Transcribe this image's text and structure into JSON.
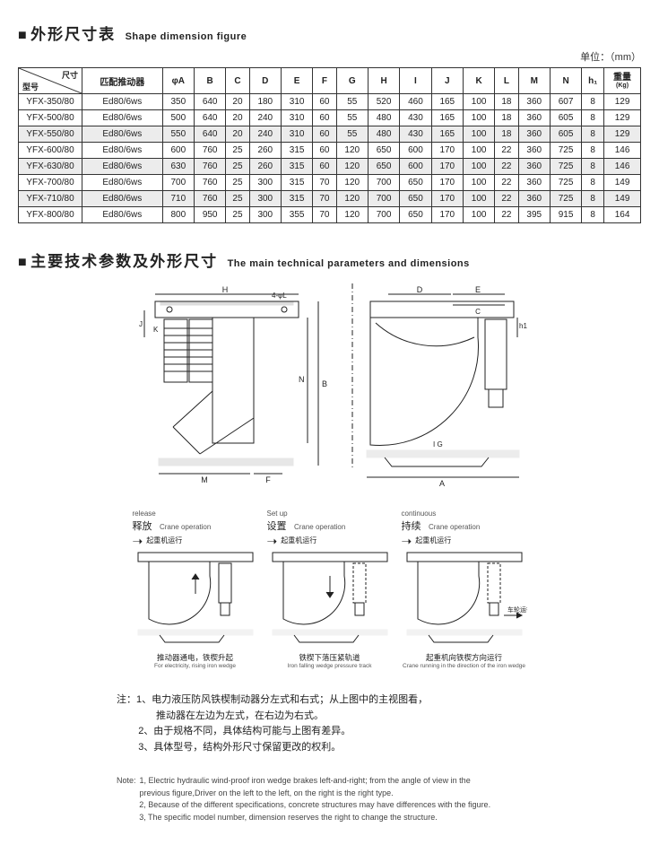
{
  "section1": {
    "title_cn": "外形尺寸表",
    "title_en": "Shape dimension figure",
    "unit": "单位：（mm）",
    "corner_top": "尺寸",
    "corner_bottom": "型号",
    "columns": [
      "匹配推动器",
      "φA",
      "B",
      "C",
      "D",
      "E",
      "F",
      "G",
      "H",
      "I",
      "J",
      "K",
      "L",
      "M",
      "N",
      "h₁",
      "重量",
      "(Kg)"
    ],
    "rows": [
      {
        "model": "YFX-350/80",
        "shade": false,
        "cells": [
          "Ed80/6ws",
          "350",
          "640",
          "20",
          "180",
          "310",
          "60",
          "55",
          "520",
          "460",
          "165",
          "100",
          "18",
          "360",
          "607",
          "8",
          "129"
        ]
      },
      {
        "model": "YFX-500/80",
        "shade": false,
        "cells": [
          "Ed80/6ws",
          "500",
          "640",
          "20",
          "240",
          "310",
          "60",
          "55",
          "480",
          "430",
          "165",
          "100",
          "18",
          "360",
          "605",
          "8",
          "129"
        ]
      },
      {
        "model": "YFX-550/80",
        "shade": true,
        "cells": [
          "Ed80/6ws",
          "550",
          "640",
          "20",
          "240",
          "310",
          "60",
          "55",
          "480",
          "430",
          "165",
          "100",
          "18",
          "360",
          "605",
          "8",
          "129"
        ]
      },
      {
        "model": "YFX-600/80",
        "shade": false,
        "cells": [
          "Ed80/6ws",
          "600",
          "760",
          "25",
          "260",
          "315",
          "60",
          "120",
          "650",
          "600",
          "170",
          "100",
          "22",
          "360",
          "725",
          "8",
          "146"
        ]
      },
      {
        "model": "YFX-630/80",
        "shade": true,
        "cells": [
          "Ed80/6ws",
          "630",
          "760",
          "25",
          "260",
          "315",
          "60",
          "120",
          "650",
          "600",
          "170",
          "100",
          "22",
          "360",
          "725",
          "8",
          "146"
        ]
      },
      {
        "model": "YFX-700/80",
        "shade": false,
        "cells": [
          "Ed80/6ws",
          "700",
          "760",
          "25",
          "300",
          "315",
          "70",
          "120",
          "700",
          "650",
          "170",
          "100",
          "22",
          "360",
          "725",
          "8",
          "149"
        ]
      },
      {
        "model": "YFX-710/80",
        "shade": true,
        "cells": [
          "Ed80/6ws",
          "710",
          "760",
          "25",
          "300",
          "315",
          "70",
          "120",
          "700",
          "650",
          "170",
          "100",
          "22",
          "360",
          "725",
          "8",
          "149"
        ]
      },
      {
        "model": "YFX-800/80",
        "shade": false,
        "cells": [
          "Ed80/6ws",
          "800",
          "950",
          "25",
          "300",
          "355",
          "70",
          "120",
          "700",
          "650",
          "170",
          "100",
          "22",
          "395",
          "915",
          "8",
          "164"
        ]
      }
    ]
  },
  "section2": {
    "title_cn": "主要技术参数及外形尺寸",
    "title_en": "The main technical parameters and dimensions"
  },
  "diagram_labels": {
    "H": "H",
    "J": "J",
    "K": "K",
    "FL": "4-φL",
    "D": "D",
    "E": "E",
    "C": "C",
    "h1": "h1",
    "N": "N",
    "B": "B",
    "IG": "I G",
    "M": "M",
    "F": "F",
    "A": "A"
  },
  "states": [
    {
      "en": "release",
      "cn": "释放",
      "crane": "Crane operation",
      "crane_cn": "起重机运行",
      "cap_cn": "推动器通电，铁楔升起",
      "cap_en": "For electricity, rising iron wedge"
    },
    {
      "en": "Set up",
      "cn": "设置",
      "crane": "Crane operation",
      "crane_cn": "起重机运行",
      "cap_cn": "铁楔下落压紧轨道",
      "cap_en": "Iron falling wedge pressure track"
    },
    {
      "en": "continuous",
      "cn": "持续",
      "crane": "Crane operation",
      "crane_cn": "起重机运行",
      "side": "车轮运行",
      "cap_cn": "起重机向铁楔方向运行",
      "cap_en": "Crane running in the direction of the iron wedge"
    }
  ],
  "notes_cn": {
    "label": "注：",
    "items": [
      "1、电力液压防风铁楔制动器分左式和右式；从上图中的主视图看，\n　　推动器在左边为左式，在右边为右式。",
      "2、由于规格不同，具体结构可能与上图有差异。",
      "3、具体型号，结构外形尺寸保留更改的权利。"
    ]
  },
  "notes_en": {
    "label": "Note:",
    "items": [
      "1, Electric hydraulic wind-proof iron wedge brakes left-and-right;  from the angle of view in the\n    previous figure,Driver on the left to the left, on the right is the right type.",
      "2, Because of the different specifications, concrete structures may have differences with the figure.",
      "3, The specific model number, dimension reserves the right to change the structure."
    ]
  },
  "colors": {
    "line": "#222222",
    "shade": "#ececec",
    "text": "#222222",
    "muted": "#555555"
  }
}
